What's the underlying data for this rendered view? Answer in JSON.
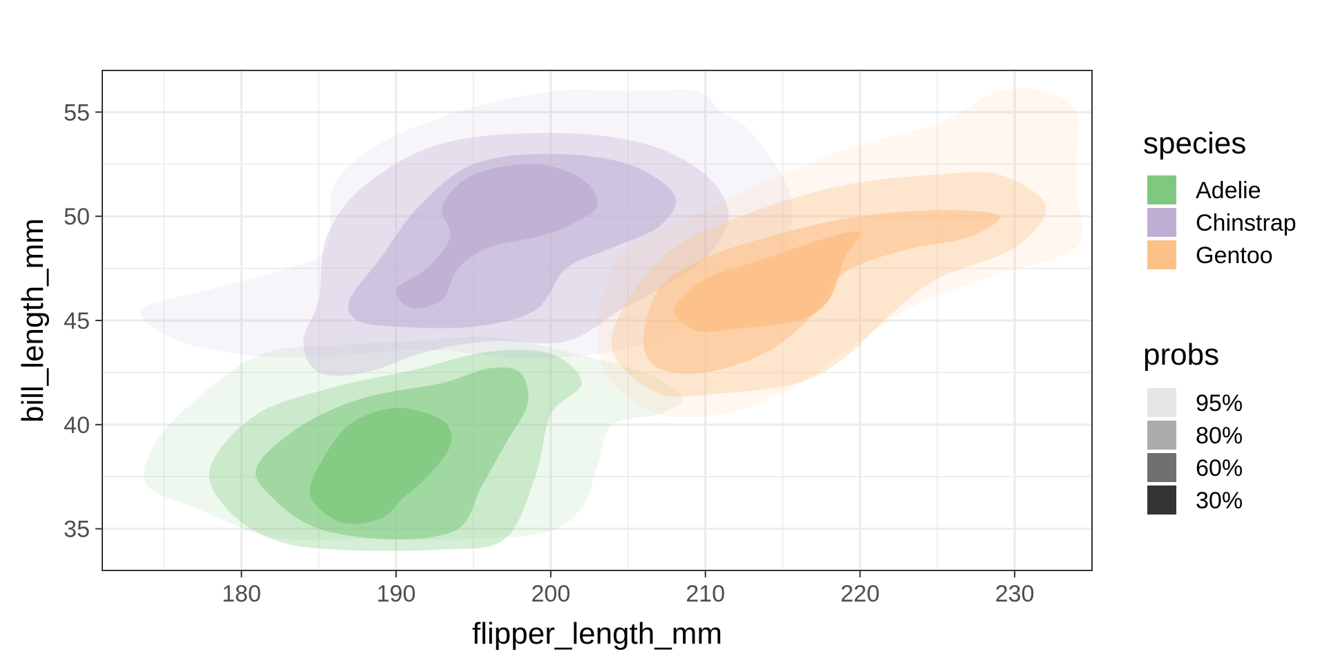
{
  "chart_data": {
    "type": "density_contour",
    "xlabel": "flipper_length_mm",
    "ylabel": "bill_length_mm",
    "xlim": [
      171,
      235
    ],
    "ylim": [
      33,
      57
    ],
    "x_ticks": [
      180,
      190,
      200,
      210,
      220,
      230
    ],
    "y_ticks": [
      35,
      40,
      45,
      50,
      55
    ],
    "grid": true,
    "legend_placement": "right",
    "colors": {
      "Adelie": "#7fc97f",
      "Chinstrap": "#beaed4",
      "Gentoo": "#fdc086"
    },
    "series": [
      {
        "name": "Adelie",
        "color": "#7fc97f",
        "levels": [
          {
            "prob": "95%",
            "outline": [
              [
                174,
                38.5
              ],
              [
                176,
                40.5
              ],
              [
                181,
                43.3
              ],
              [
                186,
                43.8
              ],
              [
                191,
                44
              ],
              [
                196,
                44.2
              ],
              [
                201,
                43.5
              ],
              [
                206,
                42.5
              ],
              [
                208.5,
                41.3
              ],
              [
                207,
                40.5
              ],
              [
                204,
                40
              ],
              [
                203,
                38
              ],
              [
                202,
                36
              ],
              [
                199.5,
                34.8
              ],
              [
                194,
                34.5
              ],
              [
                188,
                34.5
              ],
              [
                182,
                34.6
              ],
              [
                177,
                36
              ],
              [
                174,
                37
              ]
            ]
          },
          {
            "prob": "80%",
            "outline": [
              [
                178,
                38
              ],
              [
                181,
                40.5
              ],
              [
                186,
                41.8
              ],
              [
                191,
                42.6
              ],
              [
                196,
                43.5
              ],
              [
                200,
                43.4
              ],
              [
                202,
                42
              ],
              [
                200,
                40.5
              ],
              [
                199,
                37.5
              ],
              [
                197,
                34.5
              ],
              [
                193,
                34
              ],
              [
                186,
                34
              ],
              [
                182,
                34.5
              ],
              [
                179,
                36
              ]
            ]
          },
          {
            "prob": "60%",
            "outline": [
              [
                181,
                38
              ],
              [
                184,
                40
              ],
              [
                188,
                41.3
              ],
              [
                193,
                42
              ],
              [
                196,
                42.7
              ],
              [
                198,
                42.5
              ],
              [
                198.5,
                41
              ],
              [
                197,
                39
              ],
              [
                195.5,
                37
              ],
              [
                194,
                35
              ],
              [
                190,
                34.5
              ],
              [
                185,
                35
              ],
              [
                182,
                36.5
              ]
            ]
          },
          {
            "prob": "30%",
            "outline": [
              [
                185,
                38
              ],
              [
                187,
                40
              ],
              [
                190,
                40.8
              ],
              [
                193,
                40.2
              ],
              [
                193.5,
                39
              ],
              [
                192,
                37.5
              ],
              [
                190.5,
                36.5
              ],
              [
                189,
                35.5
              ],
              [
                186.5,
                35.3
              ],
              [
                184.5,
                36.5
              ]
            ]
          }
        ]
      },
      {
        "name": "Chinstrap",
        "color": "#beaed4",
        "levels": [
          {
            "prob": "95%",
            "outline": [
              [
                178,
                46.5
              ],
              [
                183,
                47.5
              ],
              [
                185.5,
                48.5
              ],
              [
                186,
                51.5
              ],
              [
                189,
                53.5
              ],
              [
                194,
                55
              ],
              [
                200,
                56
              ],
              [
                205,
                56
              ],
              [
                209.5,
                56
              ],
              [
                211,
                55
              ],
              [
                213,
                54
              ],
              [
                215.5,
                51
              ],
              [
                215,
                48
              ],
              [
                212,
                46
              ],
              [
                208,
                44.5
              ],
              [
                204,
                43.5
              ],
              [
                198,
                43.2
              ],
              [
                192,
                43.6
              ],
              [
                186,
                43.3
              ],
              [
                181,
                43.3
              ],
              [
                176,
                44
              ],
              [
                173.5,
                45.5
              ]
            ]
          },
          {
            "prob": "80%",
            "outline": [
              [
                185,
                46
              ],
              [
                185.5,
                49
              ],
              [
                188,
                51.5
              ],
              [
                193,
                53.5
              ],
              [
                200,
                54
              ],
              [
                206,
                53.5
              ],
              [
                210,
                52
              ],
              [
                211.5,
                50
              ],
              [
                210,
                48
              ],
              [
                207,
                46.5
              ],
              [
                204.5,
                45.5
              ],
              [
                201,
                44
              ],
              [
                196,
                44
              ],
              [
                192,
                43.5
              ],
              [
                188,
                42.5
              ],
              [
                185,
                42.5
              ],
              [
                184,
                44
              ]
            ]
          },
          {
            "prob": "60%",
            "outline": [
              [
                187,
                46
              ],
              [
                189,
                48
              ],
              [
                191.5,
                50.5
              ],
              [
                195,
                52.5
              ],
              [
                200,
                53
              ],
              [
                205,
                52.5
              ],
              [
                208,
                51
              ],
              [
                207,
                49.5
              ],
              [
                204,
                48.5
              ],
              [
                201,
                47.5
              ],
              [
                199,
                45.5
              ],
              [
                195,
                44.7
              ],
              [
                190,
                44.7
              ],
              [
                187.5,
                45
              ]
            ]
          },
          {
            "prob": "30%",
            "outline": [
              [
                190,
                46.5
              ],
              [
                192,
                47.5
              ],
              [
                193.5,
                49
              ],
              [
                193,
                50.5
              ],
              [
                195,
                52
              ],
              [
                199,
                52.5
              ],
              [
                202,
                51.8
              ],
              [
                203,
                50.5
              ],
              [
                201,
                49.5
              ],
              [
                199,
                49
              ],
              [
                196,
                48.5
              ],
              [
                194,
                47.5
              ],
              [
                193,
                46
              ],
              [
                191,
                45.6
              ]
            ]
          }
        ]
      },
      {
        "name": "Gentoo",
        "color": "#fdc086",
        "levels": [
          {
            "prob": "95%",
            "outline": [
              [
                203,
                44
              ],
              [
                203.5,
                46.5
              ],
              [
                205,
                48.5
              ],
              [
                209,
                50
              ],
              [
                215,
                52
              ],
              [
                219,
                53.2
              ],
              [
                224,
                54.2
              ],
              [
                226.5,
                55
              ],
              [
                229,
                56
              ],
              [
                232,
                56
              ],
              [
                234,
                55
              ],
              [
                234,
                53
              ],
              [
                234,
                51
              ],
              [
                234,
                48.5
              ],
              [
                228,
                47
              ],
              [
                223,
                45.5
              ],
              [
                219,
                43.5
              ],
              [
                215,
                41.5
              ],
              [
                211,
                40.5
              ],
              [
                207,
                40.5
              ],
              [
                204,
                42
              ]
            ]
          },
          {
            "prob": "80%",
            "outline": [
              [
                204,
                43.5
              ],
              [
                205,
                46
              ],
              [
                208,
                48.5
              ],
              [
                213,
                50.2
              ],
              [
                219,
                51.5
              ],
              [
                225,
                52
              ],
              [
                229,
                52
              ],
              [
                232,
                50.5
              ],
              [
                230,
                48.5
              ],
              [
                225,
                47
              ],
              [
                222,
                45.3
              ],
              [
                219,
                43.2
              ],
              [
                216,
                42
              ],
              [
                211,
                41.5
              ],
              [
                207,
                41.5
              ]
            ]
          },
          {
            "prob": "60%",
            "outline": [
              [
                206,
                44
              ],
              [
                207,
                46.5
              ],
              [
                210,
                48
              ],
              [
                215,
                49.2
              ],
              [
                220,
                50
              ],
              [
                225.5,
                50.3
              ],
              [
                229,
                50
              ],
              [
                227,
                49
              ],
              [
                223,
                48.4
              ],
              [
                219,
                47.3
              ],
              [
                217,
                45.3
              ],
              [
                214,
                43.5
              ],
              [
                210,
                42.5
              ],
              [
                207,
                42.7
              ]
            ]
          },
          {
            "prob": "30%",
            "outline": [
              [
                208,
                45.5
              ],
              [
                210,
                47
              ],
              [
                214,
                48
              ],
              [
                218,
                49
              ],
              [
                220,
                49.2
              ],
              [
                219,
                48
              ],
              [
                218,
                46
              ],
              [
                216,
                45
              ],
              [
                212,
                44.6
              ],
              [
                209.5,
                44.5
              ]
            ]
          }
        ]
      }
    ],
    "legend": {
      "species_title": "species",
      "species": [
        "Adelie",
        "Chinstrap",
        "Gentoo"
      ],
      "probs_title": "probs",
      "probs": [
        {
          "label": "95%",
          "color": "#e6e6e6"
        },
        {
          "label": "80%",
          "color": "#ababab"
        },
        {
          "label": "60%",
          "color": "#707070"
        },
        {
          "label": "30%",
          "color": "#333333"
        }
      ]
    }
  }
}
